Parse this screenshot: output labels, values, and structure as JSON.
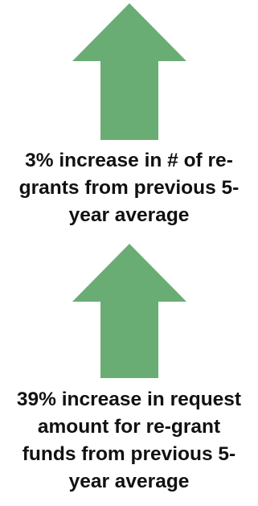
{
  "colors": {
    "arrow": "#6aad74",
    "text": "#111111",
    "background": "#ffffff"
  },
  "stats": [
    {
      "icon": "up-arrow-icon",
      "lines": [
        "3% increase in # of re-",
        "grants from previous 5-",
        "year average"
      ]
    },
    {
      "icon": "up-arrow-icon",
      "lines": [
        "39% increase in request",
        "amount for re-grant",
        "funds from previous 5-",
        "year average"
      ]
    }
  ]
}
